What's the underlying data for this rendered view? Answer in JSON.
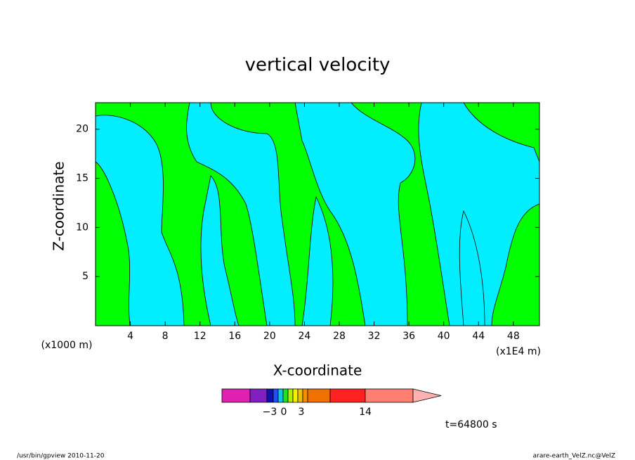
{
  "chart_data": {
    "type": "contour",
    "title": "vertical velocity",
    "x_label": "X-coordinate",
    "y_label": "Z-coordinate",
    "x_unit_left": "(x1000 m)",
    "x_unit_right": "(x1E4 m)",
    "xlim": [
      0,
      51
    ],
    "xticks": [
      4,
      8,
      12,
      16,
      20,
      24,
      28,
      32,
      36,
      40,
      44,
      48
    ],
    "ylim": [
      0,
      22.7
    ],
    "yticks": [
      5,
      10,
      15,
      20
    ],
    "colorbar": {
      "colors": [
        "#e020b0",
        "#8020c0",
        "#1010b0",
        "#2050f0",
        "#00c8f0",
        "#20e020",
        "#b0f000",
        "#f0f000",
        "#f0c000",
        "#f09000",
        "#f07000",
        "#ff2020",
        "#ff8070",
        "#ffb0b0"
      ],
      "ticks": [
        {
          "value": -3,
          "label": "−3"
        },
        0,
        3,
        14
      ]
    },
    "time_label": "t=64800 s",
    "footer_left": "/usr/bin/gpview   2010-11-20",
    "footer_right": "arare-earth_VelZ.nc@VelZ"
  }
}
